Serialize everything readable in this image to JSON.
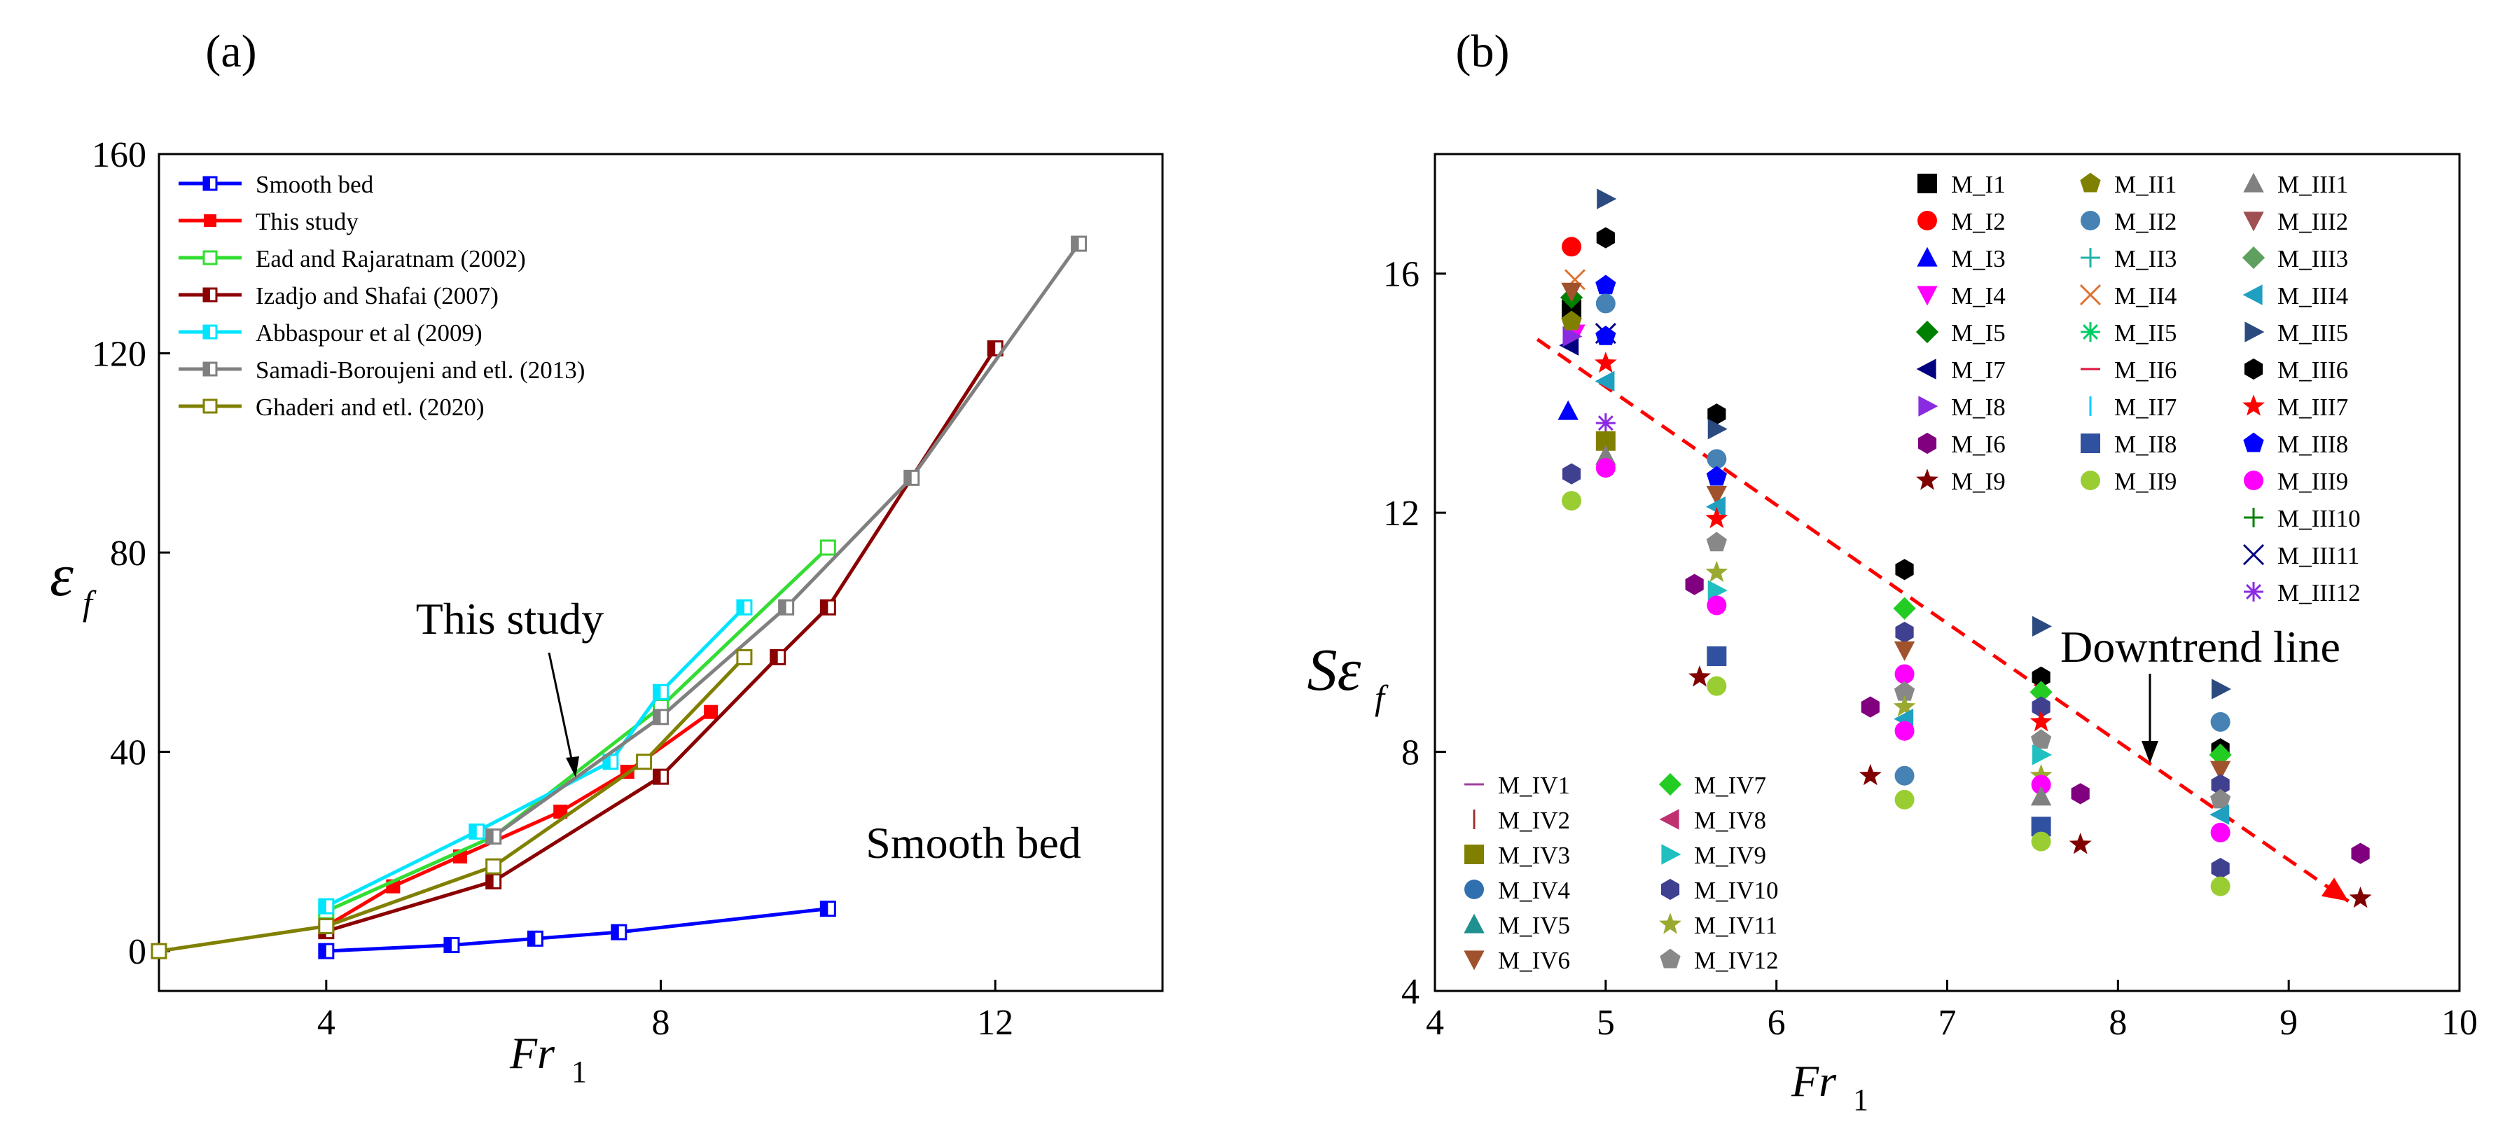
{
  "chart_data": [
    {
      "panel": "a",
      "panel_label": "(a)",
      "type": "line",
      "xlabel": "Fr",
      "xlabel_sub": "1",
      "ylabel": "ε",
      "ylabel_sub": "f",
      "xlim": [
        2,
        14
      ],
      "ylim": [
        -8,
        160
      ],
      "xticks": [
        4,
        8,
        12
      ],
      "yticks": [
        0,
        40,
        80,
        120,
        160
      ],
      "legend_position": "top-left",
      "series": [
        {
          "name": "Smooth bed",
          "color": "#0000ff",
          "marker": "half-square",
          "x": [
            4,
            5.5,
            6.5,
            7.5,
            10
          ],
          "y": [
            0,
            1.2,
            2.5,
            3.8,
            8.5
          ]
        },
        {
          "name": "This study",
          "color": "#ff0000",
          "marker": "square",
          "x": [
            4,
            4.8,
            5.6,
            6.8,
            7.6,
            8.6
          ],
          "y": [
            5,
            13,
            19,
            28,
            36,
            48
          ]
        },
        {
          "name": "Ead and Rajaratnam (2002)",
          "color": "#33dd33",
          "marker": "open-square",
          "x": [
            4,
            6,
            8,
            10
          ],
          "y": [
            8,
            23,
            49,
            81
          ]
        },
        {
          "name": "Izadjo and Shafai (2007)",
          "color": "#8b0000",
          "marker": "half-square",
          "x": [
            4,
            6,
            8,
            9.4,
            10,
            12
          ],
          "y": [
            4,
            14,
            35,
            59,
            69,
            121
          ]
        },
        {
          "name": "Abbaspour et al (2009)",
          "color": "#00e5ff",
          "marker": "half-square",
          "x": [
            4,
            5.8,
            7.4,
            8,
            9
          ],
          "y": [
            9,
            24,
            38,
            52,
            69
          ]
        },
        {
          "name": "Samadi-Boroujeni and etl. (2013)",
          "color": "#808080",
          "marker": "half-square",
          "x": [
            6,
            8,
            9.5,
            11,
            13
          ],
          "y": [
            23,
            47,
            69,
            95,
            142
          ]
        },
        {
          "name": "Ghaderi and etl. (2020)",
          "color": "#808000",
          "marker": "open-square",
          "x": [
            2,
            4,
            6,
            7.8,
            9
          ],
          "y": [
            0,
            5,
            17,
            38,
            59
          ]
        }
      ],
      "annotations": [
        {
          "text": "This study",
          "color": "#ff0000",
          "x": 7.4,
          "y": 63
        },
        {
          "text": "Smooth bed",
          "color": "#0000ff",
          "x": 11.3,
          "y": 16
        }
      ]
    },
    {
      "panel": "b",
      "panel_label": "(b)",
      "type": "scatter",
      "xlabel": "Fr",
      "xlabel_sub": "1",
      "ylabel": "Sε",
      "ylabel_sub": "f",
      "xlim": [
        4,
        10
      ],
      "ylim": [
        4,
        18
      ],
      "xticks": [
        4,
        5,
        6,
        7,
        8,
        9,
        10
      ],
      "yticks": [
        4,
        8,
        12,
        16
      ],
      "trend_line": {
        "label": "Downtrend line",
        "color": "#ff0000",
        "x": [
          4.6,
          9.35
        ],
        "y": [
          14.9,
          5.5
        ]
      },
      "legend_groups_top": [
        [
          {
            "name": "M_I1",
            "color": "#000000",
            "marker": "square"
          },
          {
            "name": "M_I2",
            "color": "#ff0000",
            "marker": "circle"
          },
          {
            "name": "M_I3",
            "color": "#0000ff",
            "marker": "triangle-up"
          },
          {
            "name": "M_I4",
            "color": "#ff00ff",
            "marker": "triangle-down"
          },
          {
            "name": "M_I5",
            "color": "#008000",
            "marker": "diamond"
          },
          {
            "name": "M_I7",
            "color": "#000080",
            "marker": "triangle-left"
          },
          {
            "name": "M_I8",
            "color": "#8a2be2",
            "marker": "triangle-right"
          },
          {
            "name": "M_I6",
            "color": "#800080",
            "marker": "hexagon"
          },
          {
            "name": "M_I9",
            "color": "#800000",
            "marker": "star"
          }
        ],
        [
          {
            "name": "M_II1",
            "color": "#808000",
            "marker": "pentagon"
          },
          {
            "name": "M_II2",
            "color": "#4682b4",
            "marker": "circle"
          },
          {
            "name": "M_II3",
            "color": "#20b2aa",
            "marker": "plus"
          },
          {
            "name": "M_II4",
            "color": "#e07030",
            "marker": "cross"
          },
          {
            "name": "M_II5",
            "color": "#00cc66",
            "marker": "asterisk"
          },
          {
            "name": "M_II6",
            "color": "#dc143c",
            "marker": "hline"
          },
          {
            "name": "M_II7",
            "color": "#00ccff",
            "marker": "vline"
          },
          {
            "name": "M_II8",
            "color": "#3050a0",
            "marker": "square"
          },
          {
            "name": "M_II9",
            "color": "#9acd32",
            "marker": "circle"
          }
        ],
        [
          {
            "name": "M_III1",
            "color": "#808080",
            "marker": "triangle-up"
          },
          {
            "name": "M_III2",
            "color": "#a05050",
            "marker": "triangle-down"
          },
          {
            "name": "M_III3",
            "color": "#5f9f5f",
            "marker": "diamond"
          },
          {
            "name": "M_III4",
            "color": "#20a0c0",
            "marker": "triangle-left"
          },
          {
            "name": "M_III5",
            "color": "#2a4a80",
            "marker": "triangle-right"
          },
          {
            "name": "M_III6",
            "color": "#000000",
            "marker": "hexagon"
          },
          {
            "name": "M_III7",
            "color": "#ff0000",
            "marker": "star"
          },
          {
            "name": "M_III8",
            "color": "#0000ff",
            "marker": "pentagon"
          },
          {
            "name": "M_III9",
            "color": "#ff00ff",
            "marker": "circle"
          },
          {
            "name": "M_III10",
            "color": "#008000",
            "marker": "plus"
          },
          {
            "name": "M_III11",
            "color": "#000080",
            "marker": "cross"
          },
          {
            "name": "M_III12",
            "color": "#8a2be2",
            "marker": "asterisk"
          }
        ]
      ],
      "legend_groups_bottom": [
        [
          {
            "name": "M_IV1",
            "color": "#a040a0",
            "marker": "hline"
          },
          {
            "name": "M_IV2",
            "color": "#a03030",
            "marker": "vline"
          },
          {
            "name": "M_IV3",
            "color": "#808000",
            "marker": "square"
          },
          {
            "name": "M_IV4",
            "color": "#3070b0",
            "marker": "circle"
          },
          {
            "name": "M_IV5",
            "color": "#209090",
            "marker": "triangle-up"
          },
          {
            "name": "M_IV6",
            "color": "#a0522d",
            "marker": "triangle-down"
          }
        ],
        [
          {
            "name": "M_IV7",
            "color": "#22cc22",
            "marker": "diamond"
          },
          {
            "name": "M_IV8",
            "color": "#c03070",
            "marker": "triangle-left"
          },
          {
            "name": "M_IV9",
            "color": "#20c0c0",
            "marker": "triangle-right"
          },
          {
            "name": "M_IV10",
            "color": "#404090",
            "marker": "hexagon"
          },
          {
            "name": "M_IV11",
            "color": "#9aaa30",
            "marker": "star"
          },
          {
            "name": "M_IV12",
            "color": "#888888",
            "marker": "pentagon"
          }
        ]
      ],
      "points": [
        {
          "x": 4.8,
          "y": 15.4,
          "s": "M_I1"
        },
        {
          "x": 4.8,
          "y": 16.45,
          "s": "M_I2"
        },
        {
          "x": 4.78,
          "y": 13.7,
          "s": "M_I3"
        },
        {
          "x": 4.82,
          "y": 15.0,
          "s": "M_I4"
        },
        {
          "x": 4.8,
          "y": 15.6,
          "s": "M_I5"
        },
        {
          "x": 4.79,
          "y": 14.8,
          "s": "M_I7"
        },
        {
          "x": 4.8,
          "y": 14.95,
          "s": "M_I8"
        },
        {
          "x": 4.8,
          "y": 12.65,
          "s": "M_IV10"
        },
        {
          "x": 4.8,
          "y": 12.2,
          "s": "M_II9"
        },
        {
          "x": 4.82,
          "y": 15.9,
          "s": "M_II4"
        },
        {
          "x": 4.8,
          "y": 15.7,
          "s": "M_IV6"
        },
        {
          "x": 4.8,
          "y": 15.2,
          "s": "M_II1"
        },
        {
          "x": 5.0,
          "y": 17.25,
          "s": "M_III5"
        },
        {
          "x": 5.0,
          "y": 16.6,
          "s": "M_III6"
        },
        {
          "x": 5.0,
          "y": 15.8,
          "s": "M_III8"
        },
        {
          "x": 5.0,
          "y": 15.5,
          "s": "M_II2"
        },
        {
          "x": 5.0,
          "y": 15.0,
          "s": "M_III11"
        },
        {
          "x": 5.0,
          "y": 14.95,
          "s": "M_III8"
        },
        {
          "x": 5.0,
          "y": 14.5,
          "s": "M_III7"
        },
        {
          "x": 5.0,
          "y": 14.2,
          "s": "M_III4"
        },
        {
          "x": 5.0,
          "y": 13.5,
          "s": "M_III12"
        },
        {
          "x": 5.0,
          "y": 13.2,
          "s": "M_IV3"
        },
        {
          "x": 5.0,
          "y": 12.95,
          "s": "M_III1"
        },
        {
          "x": 5.0,
          "y": 12.75,
          "s": "M_III9"
        },
        {
          "x": 5.65,
          "y": 13.65,
          "s": "M_III6"
        },
        {
          "x": 5.65,
          "y": 13.4,
          "s": "M_III5"
        },
        {
          "x": 5.65,
          "y": 12.9,
          "s": "M_II2"
        },
        {
          "x": 5.65,
          "y": 12.6,
          "s": "M_III8"
        },
        {
          "x": 5.65,
          "y": 12.3,
          "s": "M_IV6"
        },
        {
          "x": 5.65,
          "y": 12.1,
          "s": "M_III4"
        },
        {
          "x": 5.65,
          "y": 11.9,
          "s": "M_III7"
        },
        {
          "x": 5.65,
          "y": 11.5,
          "s": "M_IV12"
        },
        {
          "x": 5.65,
          "y": 11.0,
          "s": "M_IV11"
        },
        {
          "x": 5.65,
          "y": 10.7,
          "s": "M_IV9"
        },
        {
          "x": 5.65,
          "y": 10.45,
          "s": "M_III9"
        },
        {
          "x": 5.65,
          "y": 9.6,
          "s": "M_II8"
        },
        {
          "x": 5.65,
          "y": 9.1,
          "s": "M_II9"
        },
        {
          "x": 5.52,
          "y": 10.8,
          "s": "M_I6"
        },
        {
          "x": 5.55,
          "y": 9.25,
          "s": "M_I9"
        },
        {
          "x": 6.75,
          "y": 11.05,
          "s": "M_III6"
        },
        {
          "x": 6.75,
          "y": 10.4,
          "s": "M_IV7"
        },
        {
          "x": 6.75,
          "y": 10.0,
          "s": "M_IV10"
        },
        {
          "x": 6.75,
          "y": 9.7,
          "s": "M_IV6"
        },
        {
          "x": 6.75,
          "y": 9.3,
          "s": "M_III9"
        },
        {
          "x": 6.75,
          "y": 9.0,
          "s": "M_IV12"
        },
        {
          "x": 6.75,
          "y": 8.75,
          "s": "M_IV11"
        },
        {
          "x": 6.75,
          "y": 8.55,
          "s": "M_III4"
        },
        {
          "x": 6.75,
          "y": 8.35,
          "s": "M_III9"
        },
        {
          "x": 6.75,
          "y": 7.6,
          "s": "M_II2"
        },
        {
          "x": 6.75,
          "y": 7.2,
          "s": "M_II9"
        },
        {
          "x": 6.55,
          "y": 8.75,
          "s": "M_I6"
        },
        {
          "x": 6.55,
          "y": 7.6,
          "s": "M_I9"
        },
        {
          "x": 7.55,
          "y": 10.1,
          "s": "M_III5"
        },
        {
          "x": 7.55,
          "y": 9.25,
          "s": "M_III6"
        },
        {
          "x": 7.55,
          "y": 9.0,
          "s": "M_IV7"
        },
        {
          "x": 7.55,
          "y": 8.75,
          "s": "M_IV10"
        },
        {
          "x": 7.55,
          "y": 8.5,
          "s": "M_III7"
        },
        {
          "x": 7.55,
          "y": 8.2,
          "s": "M_IV12"
        },
        {
          "x": 7.55,
          "y": 7.95,
          "s": "M_IV9"
        },
        {
          "x": 7.55,
          "y": 7.6,
          "s": "M_IV11"
        },
        {
          "x": 7.55,
          "y": 7.45,
          "s": "M_III9"
        },
        {
          "x": 7.55,
          "y": 7.25,
          "s": "M_III1"
        },
        {
          "x": 7.55,
          "y": 6.75,
          "s": "M_II8"
        },
        {
          "x": 7.55,
          "y": 6.5,
          "s": "M_II9"
        },
        {
          "x": 7.78,
          "y": 7.3,
          "s": "M_I6"
        },
        {
          "x": 7.78,
          "y": 6.45,
          "s": "M_I9"
        },
        {
          "x": 8.6,
          "y": 9.05,
          "s": "M_III5"
        },
        {
          "x": 8.6,
          "y": 8.5,
          "s": "M_II2"
        },
        {
          "x": 8.6,
          "y": 8.05,
          "s": "M_III6"
        },
        {
          "x": 8.6,
          "y": 7.95,
          "s": "M_IV7"
        },
        {
          "x": 8.6,
          "y": 7.7,
          "s": "M_IV6"
        },
        {
          "x": 8.6,
          "y": 7.45,
          "s": "M_IV10"
        },
        {
          "x": 8.6,
          "y": 7.2,
          "s": "M_IV12"
        },
        {
          "x": 8.6,
          "y": 6.95,
          "s": "M_III4"
        },
        {
          "x": 8.6,
          "y": 6.65,
          "s": "M_III9"
        },
        {
          "x": 8.6,
          "y": 6.05,
          "s": "M_IV10"
        },
        {
          "x": 8.6,
          "y": 5.75,
          "s": "M_II9"
        },
        {
          "x": 9.42,
          "y": 6.3,
          "s": "M_I6"
        },
        {
          "x": 9.42,
          "y": 5.55,
          "s": "M_I9"
        }
      ]
    }
  ]
}
